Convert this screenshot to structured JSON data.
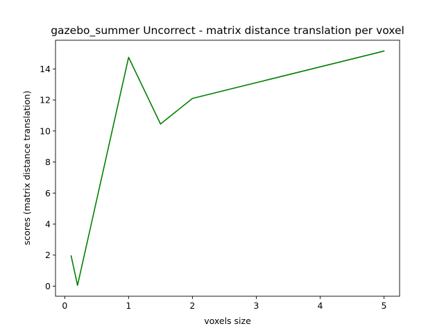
{
  "chart_data": {
    "type": "line",
    "title": "gazebo_summer Uncorrect - matrix distance translation per voxel",
    "xlabel": "voxels size",
    "ylabel": "scores (matrix distance translation)",
    "xlim": [
      -0.145,
      5.245
    ],
    "ylim": [
      -0.65,
      15.85
    ],
    "xticks": [
      0,
      1,
      2,
      3,
      4,
      5
    ],
    "yticks": [
      0,
      2,
      4,
      6,
      8,
      10,
      12,
      14
    ],
    "grid": false,
    "legend": "none",
    "series": [
      {
        "color": "#008000",
        "x": [
          0.1,
          0.2,
          1.0,
          1.5,
          2.0,
          5.0
        ],
        "y": [
          1.95,
          0.05,
          14.75,
          10.45,
          12.1,
          15.15
        ]
      }
    ]
  }
}
